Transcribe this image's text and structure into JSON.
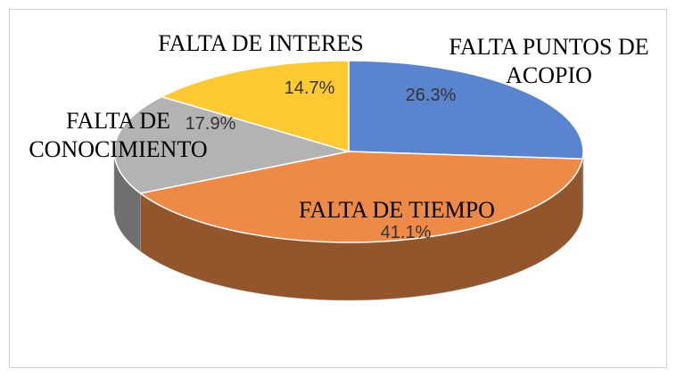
{
  "chart_data": {
    "type": "pie",
    "categories": [
      "FALTA PUNTOS DE ACOPIO",
      "FALTA DE TIEMPO",
      "FALTA DE CONOCIMIENTO",
      "FALTA DE INTERES"
    ],
    "values": [
      26.3,
      41.1,
      17.9,
      14.7
    ],
    "value_labels": [
      "26.3%",
      "41.1%",
      "17.9%",
      "14.7%"
    ],
    "colors": [
      "#5b84cf",
      "#ed8a47",
      "#b3b3b3",
      "#ffc933"
    ]
  }
}
